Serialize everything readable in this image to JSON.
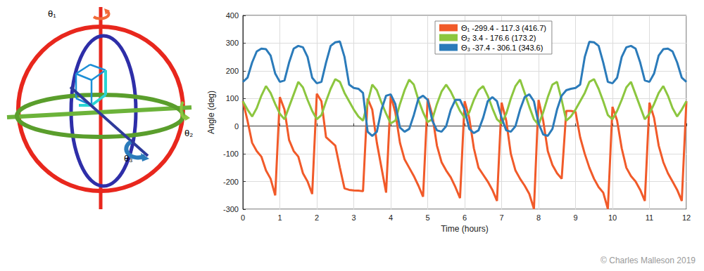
{
  "chart_data": {
    "type": "line",
    "x_label": "Time (hours)",
    "y_label": "Angle (deg)",
    "xlim": [
      0,
      12
    ],
    "xticks": [
      0,
      1,
      2,
      3,
      4,
      5,
      6,
      7,
      8,
      9,
      10,
      11,
      12
    ],
    "ylim": [
      -300,
      400
    ],
    "yticks": [
      -300,
      -200,
      -100,
      0,
      100,
      200,
      300,
      400
    ],
    "grid": true,
    "legend": "top",
    "marker": "none",
    "line_style": "solid",
    "x": [
      0,
      0.125,
      0.25,
      0.375,
      0.5,
      0.625,
      0.75,
      0.875,
      1,
      1.125,
      1.25,
      1.375,
      1.5,
      1.625,
      1.75,
      1.875,
      2,
      2.125,
      2.25,
      2.375,
      2.5,
      2.625,
      2.75,
      2.875,
      3,
      3.125,
      3.25,
      3.375,
      3.5,
      3.625,
      3.75,
      3.875,
      4,
      4.125,
      4.25,
      4.375,
      4.5,
      4.625,
      4.75,
      4.875,
      5,
      5.125,
      5.25,
      5.375,
      5.5,
      5.625,
      5.75,
      5.875,
      6,
      6.125,
      6.25,
      6.375,
      6.5,
      6.625,
      6.75,
      6.875,
      7,
      7.125,
      7.25,
      7.375,
      7.5,
      7.625,
      7.75,
      7.875,
      8,
      8.125,
      8.25,
      8.375,
      8.5,
      8.625,
      8.75,
      8.875,
      9,
      9.125,
      9.25,
      9.375,
      9.5,
      9.625,
      9.75,
      9.875,
      10,
      10.125,
      10.25,
      10.375,
      10.5,
      10.625,
      10.75,
      10.875,
      11,
      11.125,
      11.25,
      11.375,
      11.5,
      11.625,
      11.75,
      11.875,
      12
    ],
    "series": [
      {
        "name": "Θ₁ -299.4 - 117.3 (416.7)",
        "color": "#f15a29",
        "values": [
          90,
          20,
          -60,
          -90,
          -110,
          -160,
          -190,
          -250,
          105,
          60,
          -50,
          -90,
          -110,
          -170,
          -200,
          -245,
          117,
          90,
          -40,
          -55,
          -70,
          -150,
          -225,
          -230,
          -232,
          -233,
          -235,
          100,
          60,
          -60,
          -150,
          -240,
          110,
          50,
          -60,
          -120,
          -150,
          -180,
          -215,
          -255,
          100,
          40,
          -70,
          -130,
          -160,
          -185,
          -220,
          -260,
          90,
          30,
          -80,
          -150,
          -175,
          -200,
          -230,
          -270,
          85,
          20,
          -100,
          -160,
          -190,
          -215,
          -245,
          -299,
          95,
          20,
          -90,
          -140,
          -170,
          -190,
          55,
          55,
          52,
          -40,
          -100,
          -150,
          -190,
          -220,
          -240,
          -299,
          70,
          20,
          -80,
          -150,
          -180,
          -200,
          -230,
          -270,
          85,
          30,
          -70,
          -130,
          -170,
          -200,
          -230,
          -270,
          90
        ]
      },
      {
        "name": "Θ₂ 3.4 - 176.6 (173.2)",
        "color": "#8cc63f",
        "values": [
          90,
          60,
          35,
          65,
          110,
          145,
          120,
          80,
          45,
          25,
          70,
          115,
          160,
          140,
          95,
          55,
          25,
          40,
          90,
          135,
          170,
          160,
          120,
          90,
          60,
          35,
          20,
          85,
          150,
          130,
          85,
          45,
          10,
          20,
          80,
          130,
          168,
          150,
          95,
          50,
          15,
          25,
          80,
          125,
          150,
          125,
          90,
          55,
          30,
          50,
          95,
          130,
          145,
          110,
          65,
          25,
          10,
          45,
          100,
          145,
          168,
          120,
          70,
          25,
          5,
          50,
          105,
          150,
          160,
          95,
          20,
          35,
          60,
          90,
          120,
          160,
          170,
          135,
          90,
          40,
          25,
          55,
          95,
          140,
          160,
          115,
          70,
          25,
          45,
          80,
          120,
          145,
          110,
          65,
          35,
          60,
          90
        ]
      },
      {
        "name": "Θ₃ -37.4 - 306.1 (343.6)",
        "color": "#2b7bba",
        "values": [
          160,
          175,
          230,
          270,
          280,
          278,
          255,
          190,
          160,
          165,
          230,
          280,
          290,
          285,
          250,
          175,
          155,
          160,
          230,
          290,
          303,
          306,
          250,
          150,
          138,
          135,
          120,
          -20,
          -35,
          -20,
          60,
          110,
          115,
          80,
          -5,
          -20,
          -10,
          40,
          100,
          110,
          95,
          20,
          -15,
          -20,
          0,
          60,
          95,
          95,
          60,
          -10,
          -25,
          -15,
          30,
          90,
          105,
          90,
          30,
          -15,
          -20,
          0,
          60,
          105,
          115,
          90,
          10,
          -30,
          -35,
          -10,
          60,
          110,
          130,
          135,
          138,
          150,
          250,
          305,
          303,
          290,
          230,
          160,
          155,
          175,
          250,
          285,
          290,
          280,
          230,
          165,
          160,
          190,
          255,
          278,
          280,
          270,
          230,
          175,
          160
        ]
      }
    ]
  },
  "diagram": {
    "labels": [
      "θ₁",
      "θ₂",
      "θ₃"
    ]
  },
  "credit": "© Charles Malleson 2019"
}
